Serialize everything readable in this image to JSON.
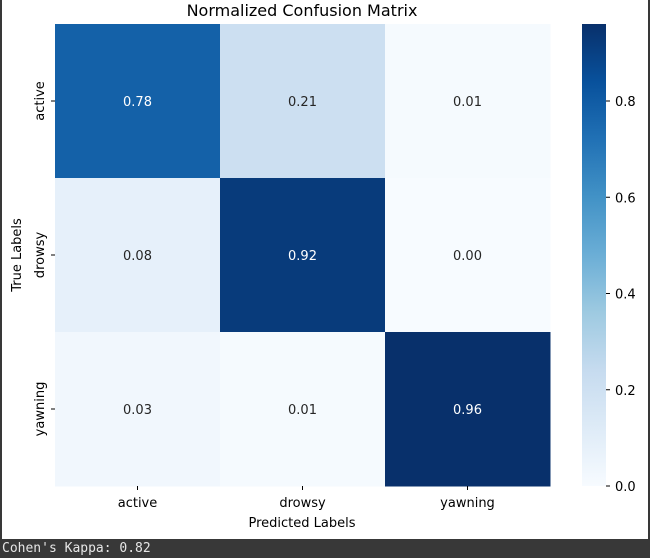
{
  "chart_data": {
    "type": "heatmap",
    "title": "Normalized Confusion Matrix",
    "xlabel": "Predicted Labels",
    "ylabel": "True Labels",
    "x_categories": [
      "active",
      "drowsy",
      "yawning"
    ],
    "y_categories": [
      "active",
      "drowsy",
      "yawning"
    ],
    "values": [
      [
        0.78,
        0.21,
        0.01
      ],
      [
        0.08,
        0.92,
        0.0
      ],
      [
        0.03,
        0.01,
        0.96
      ]
    ],
    "value_labels": [
      [
        "0.78",
        "0.21",
        "0.01"
      ],
      [
        "0.08",
        "0.92",
        "0.00"
      ],
      [
        "0.03",
        "0.01",
        "0.96"
      ]
    ],
    "colormap": "Blues",
    "vmin": 0.0,
    "vmax": 0.96,
    "colorbar_ticks": [
      0.0,
      0.2,
      0.4,
      0.6,
      0.8
    ],
    "colorbar_tick_labels": [
      "0.0",
      "0.2",
      "0.4",
      "0.6",
      "0.8"
    ]
  },
  "console": {
    "output": "Cohen's Kappa: 0.82"
  }
}
